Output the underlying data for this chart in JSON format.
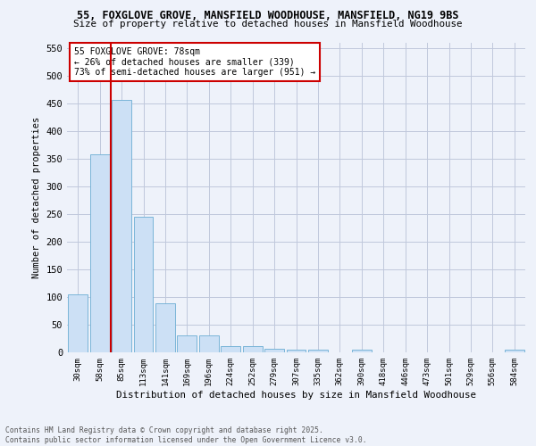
{
  "title_line1": "55, FOXGLOVE GROVE, MANSFIELD WOODHOUSE, MANSFIELD, NG19 9BS",
  "title_line2": "Size of property relative to detached houses in Mansfield Woodhouse",
  "xlabel": "Distribution of detached houses by size in Mansfield Woodhouse",
  "ylabel": "Number of detached properties",
  "categories": [
    "30sqm",
    "58sqm",
    "85sqm",
    "113sqm",
    "141sqm",
    "169sqm",
    "196sqm",
    "224sqm",
    "252sqm",
    "279sqm",
    "307sqm",
    "335sqm",
    "362sqm",
    "390sqm",
    "418sqm",
    "446sqm",
    "473sqm",
    "501sqm",
    "529sqm",
    "556sqm",
    "584sqm"
  ],
  "values": [
    105,
    357,
    456,
    245,
    88,
    31,
    31,
    12,
    12,
    7,
    5,
    5,
    0,
    5,
    0,
    0,
    0,
    0,
    0,
    0,
    5
  ],
  "bar_color": "#cce0f5",
  "bar_edge_color": "#7ab5d8",
  "vline_color": "#cc0000",
  "vline_x": 1.5,
  "annotation_title": "55 FOXGLOVE GROVE: 78sqm",
  "annotation_line1": "← 26% of detached houses are smaller (339)",
  "annotation_line2": "73% of semi-detached houses are larger (951) →",
  "annotation_box_edgecolor": "#cc0000",
  "ylim": [
    0,
    560
  ],
  "yticks": [
    0,
    50,
    100,
    150,
    200,
    250,
    300,
    350,
    400,
    450,
    500,
    550
  ],
  "footer_line1": "Contains HM Land Registry data © Crown copyright and database right 2025.",
  "footer_line2": "Contains public sector information licensed under the Open Government Licence v3.0.",
  "bg_color": "#eef2fa",
  "grid_color": "#c0c8dc"
}
